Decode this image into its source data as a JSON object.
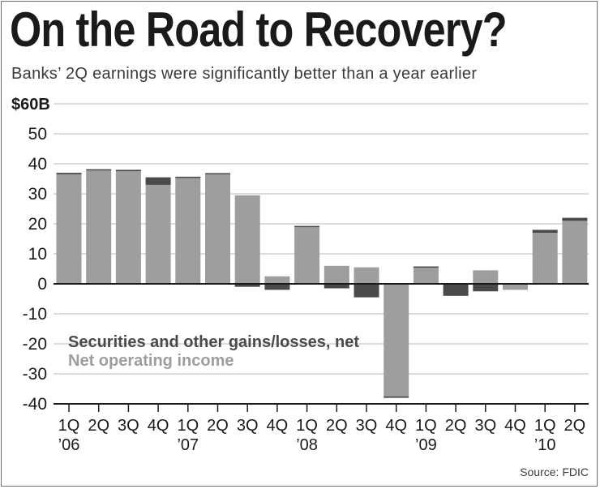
{
  "title": "On the Road to Recovery?",
  "subtitle": "Banks’ 2Q earnings were significantly better than a year earlier",
  "source": "Source: FDIC",
  "colors": {
    "net_operating_income": "#9e9e9e",
    "securities": "#4a4a4a",
    "gridline": "#c8c8c8",
    "axis": "#1a1a1a"
  },
  "chart_data": {
    "type": "bar",
    "stacked": true,
    "ylim": [
      -40,
      60
    ],
    "yticks": [
      -40,
      -30,
      -20,
      -10,
      0,
      10,
      20,
      30,
      40,
      50
    ],
    "ytick_labels": [
      "-40",
      "-30",
      "-20",
      "-10",
      "0",
      "10",
      "20",
      "30",
      "40",
      "50"
    ],
    "top_label": "$60B",
    "grid": true,
    "categories": [
      {
        "quarter": "1Q",
        "year": "’06"
      },
      {
        "quarter": "2Q",
        "year": ""
      },
      {
        "quarter": "3Q",
        "year": ""
      },
      {
        "quarter": "4Q",
        "year": ""
      },
      {
        "quarter": "1Q",
        "year": "’07"
      },
      {
        "quarter": "2Q",
        "year": ""
      },
      {
        "quarter": "3Q",
        "year": ""
      },
      {
        "quarter": "4Q",
        "year": ""
      },
      {
        "quarter": "1Q",
        "year": "’08"
      },
      {
        "quarter": "2Q",
        "year": ""
      },
      {
        "quarter": "3Q",
        "year": ""
      },
      {
        "quarter": "4Q",
        "year": ""
      },
      {
        "quarter": "1Q",
        "year": "’09"
      },
      {
        "quarter": "2Q",
        "year": ""
      },
      {
        "quarter": "3Q",
        "year": ""
      },
      {
        "quarter": "4Q",
        "year": ""
      },
      {
        "quarter": "1Q",
        "year": "’10"
      },
      {
        "quarter": "2Q",
        "year": ""
      }
    ],
    "series": [
      {
        "name": "Net operating income",
        "key": "net_operating_income",
        "values": [
          36.5,
          38,
          37.5,
          33,
          35.5,
          36.5,
          29.5,
          2.5,
          19,
          6,
          5.5,
          -37.5,
          5.5,
          0,
          4.5,
          -2,
          17,
          21
        ]
      },
      {
        "name": "Securities and other gains/losses, net",
        "key": "securities",
        "values": [
          0.5,
          0.2,
          0.5,
          2.5,
          0.2,
          0.4,
          -1,
          -2,
          0.3,
          -1.5,
          -4.5,
          -0.5,
          0.3,
          -4,
          -2.5,
          0,
          1,
          1
        ]
      }
    ],
    "legend": [
      {
        "label": "Securities and other gains/losses, net",
        "key": "securities",
        "color": "#4a4a4a"
      },
      {
        "label": "Net operating income",
        "key": "net_operating_income",
        "color": "#9e9e9e"
      }
    ]
  }
}
